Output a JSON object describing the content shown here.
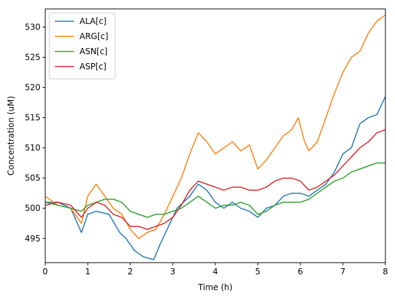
{
  "chart_data": {
    "type": "line",
    "title": "",
    "xlabel": "Time (h)",
    "ylabel": "Concentration (uM)",
    "xlim": [
      0,
      8
    ],
    "ylim": [
      491,
      533
    ],
    "xticks": [
      0,
      1,
      2,
      3,
      4,
      5,
      6,
      7,
      8
    ],
    "yticks": [
      495,
      500,
      505,
      510,
      515,
      520,
      525,
      530
    ],
    "grid": false,
    "legend": "top-left",
    "series": [
      {
        "name": "ALA[c]",
        "color": "#1f77b4",
        "x": [
          0,
          0.3,
          0.6,
          0.85,
          1.0,
          1.2,
          1.5,
          1.75,
          1.9,
          2.1,
          2.3,
          2.55,
          2.7,
          2.9,
          3.1,
          3.4,
          3.6,
          3.8,
          4.0,
          4.2,
          4.4,
          4.6,
          4.8,
          5.0,
          5.2,
          5.4,
          5.6,
          5.8,
          6.0,
          6.2,
          6.4,
          6.6,
          6.8,
          7.0,
          7.2,
          7.4,
          7.6,
          7.8,
          8.0
        ],
        "y": [
          501,
          501,
          500,
          496,
          499,
          499.5,
          499,
          496,
          495,
          493,
          492,
          491.5,
          494,
          497,
          500,
          502,
          504,
          503,
          501,
          500,
          501,
          500,
          499.5,
          498.5,
          500,
          500.5,
          502,
          502.5,
          502.5,
          502,
          503,
          504,
          506,
          509,
          510,
          514,
          515,
          515.5,
          518.5
        ]
      },
      {
        "name": "ARG[c]",
        "color": "#ff7f0e",
        "x": [
          0,
          0.3,
          0.6,
          0.85,
          1.0,
          1.2,
          1.4,
          1.6,
          1.8,
          2.0,
          2.2,
          2.4,
          2.6,
          2.8,
          3.0,
          3.2,
          3.4,
          3.6,
          3.8,
          4.0,
          4.2,
          4.4,
          4.6,
          4.8,
          5.0,
          5.2,
          5.4,
          5.6,
          5.8,
          5.95,
          6.1,
          6.2,
          6.4,
          6.6,
          6.8,
          7.0,
          7.2,
          7.4,
          7.6,
          7.8,
          8.0
        ],
        "y": [
          502,
          500.5,
          500,
          497.5,
          502,
          504,
          502,
          500,
          499,
          496.5,
          495,
          496,
          496.5,
          499,
          502,
          505,
          509,
          512.5,
          511,
          509,
          510,
          511,
          509.5,
          510.5,
          506.5,
          508,
          510,
          512,
          513,
          515,
          511,
          509.5,
          511,
          515,
          519,
          522.5,
          525,
          526,
          529,
          531,
          532
        ]
      },
      {
        "name": "ASN[c]",
        "color": "#2ca02c",
        "x": [
          0,
          0.3,
          0.6,
          0.85,
          1.0,
          1.2,
          1.4,
          1.6,
          1.8,
          2.0,
          2.2,
          2.4,
          2.6,
          2.8,
          3.0,
          3.2,
          3.4,
          3.6,
          3.8,
          4.0,
          4.2,
          4.4,
          4.6,
          4.8,
          5.0,
          5.2,
          5.4,
          5.6,
          5.8,
          6.0,
          6.2,
          6.4,
          6.6,
          6.8,
          7.0,
          7.2,
          7.4,
          7.6,
          7.8,
          8.0
        ],
        "y": [
          501,
          500.5,
          500,
          499.5,
          500.5,
          501,
          501.5,
          501.5,
          501,
          499.5,
          499,
          498.5,
          499,
          499,
          499.5,
          500,
          501,
          502,
          501,
          500,
          500.5,
          500.5,
          501,
          500.5,
          499,
          499.5,
          500.5,
          501,
          501,
          501,
          501.5,
          502.5,
          503.5,
          504.5,
          505,
          506,
          506.5,
          507,
          507.5,
          507.5
        ]
      },
      {
        "name": "ASP[c]",
        "color": "#d62728",
        "x": [
          0,
          0.3,
          0.6,
          0.85,
          1.0,
          1.2,
          1.4,
          1.6,
          1.8,
          2.0,
          2.2,
          2.4,
          2.6,
          2.8,
          3.0,
          3.2,
          3.4,
          3.6,
          3.8,
          4.0,
          4.2,
          4.4,
          4.6,
          4.8,
          5.0,
          5.2,
          5.4,
          5.6,
          5.8,
          6.0,
          6.2,
          6.4,
          6.6,
          6.8,
          7.0,
          7.2,
          7.4,
          7.6,
          7.8,
          8.0
        ],
        "y": [
          500.5,
          501,
          500.5,
          498.5,
          500,
          501,
          500.5,
          499,
          498.5,
          497,
          497,
          496.5,
          497,
          497.5,
          498.5,
          500.5,
          503,
          504.5,
          504,
          503.5,
          503,
          503.5,
          503.5,
          503,
          503,
          503.5,
          504.5,
          505,
          505,
          504.5,
          503,
          503.5,
          504.5,
          505.5,
          507,
          508.5,
          510,
          511,
          512.5,
          513
        ]
      }
    ]
  }
}
